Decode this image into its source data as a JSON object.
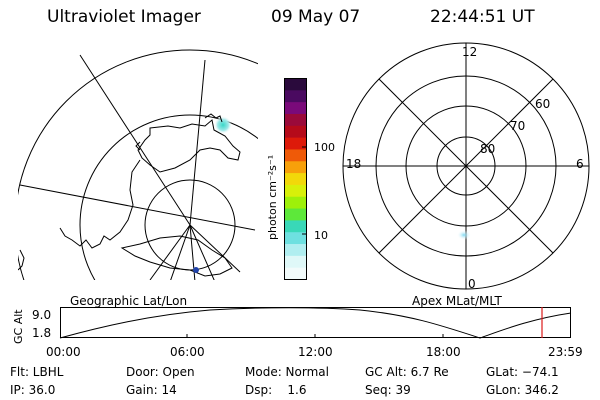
{
  "header": {
    "instrument": "Ultraviolet Imager",
    "date": "09 May 07",
    "time": "22:44:51 UT"
  },
  "left_panel": {
    "caption": "Geographic Lat/Lon"
  },
  "right_panel": {
    "caption": "Apex MLat/MLT",
    "mlt_labels": {
      "top": "12",
      "right": "6",
      "bottom": "0",
      "left": "18"
    },
    "lat_labels": [
      "60",
      "70",
      "80"
    ]
  },
  "colorbar": {
    "unit_label": "photon cm⁻²s⁻¹",
    "ticks": [
      "100",
      "10"
    ],
    "colors": [
      "#2a0a3c",
      "#4a0a60",
      "#7a0a7a",
      "#9a0a3a",
      "#b50a1a",
      "#dd1a0a",
      "#ef5a08",
      "#f7a00a",
      "#f2d80a",
      "#d8f00a",
      "#9ef00a",
      "#5de83a",
      "#39d8b8",
      "#6ee0e0",
      "#b0eef0",
      "#dff8f8",
      "#f2fbfb"
    ]
  },
  "altitude_plot": {
    "ylabel": "GC Alt",
    "y_ticks": [
      "9.0",
      "1.8"
    ],
    "x_ticks": [
      "00:00",
      "06:00",
      "12:00",
      "18:00",
      "23:59"
    ],
    "current_marker_color": "#dd1a1a"
  },
  "footer": {
    "row1": {
      "flt": "Flt: LBHL",
      "door": "Door: Open",
      "mode": "Mode: Normal",
      "gc_alt": "GC Alt: 6.7 Re",
      "glat": "GLat: −74.1"
    },
    "row2": {
      "ip": "IP: 36.0",
      "gain": "Gain: 14",
      "dsp": "Dsp:    1.6",
      "seq": "Seq: 39",
      "glon": "GLon: 346.2"
    }
  }
}
